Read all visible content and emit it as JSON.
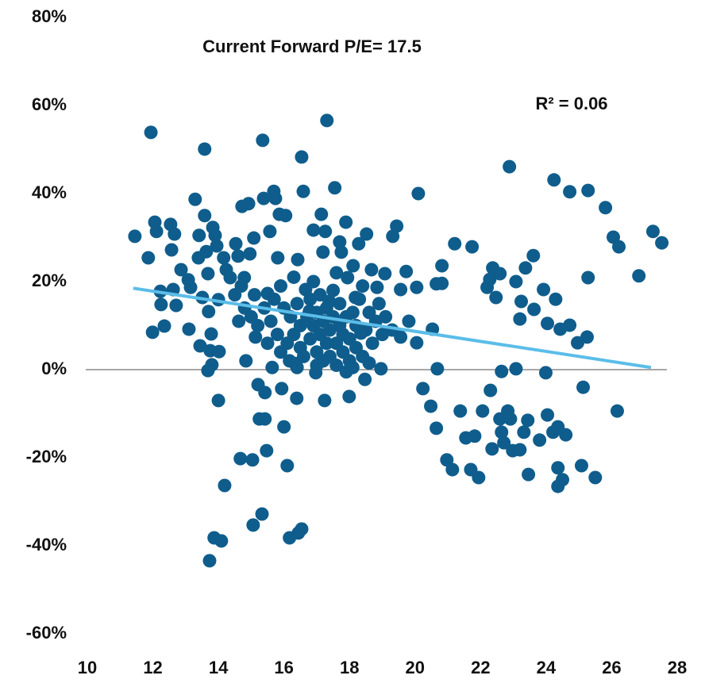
{
  "chart_data": {
    "type": "scatter",
    "annotations": [
      "Current Forward P/E= 17.5",
      "R² = 0.06"
    ],
    "color": "#0f5d8c",
    "x": [
      11.45,
      11.86,
      11.94,
      11.99,
      12.06,
      12.11,
      12.23,
      12.25,
      12.35,
      12.54,
      12.57,
      12.66,
      12.62,
      12.71,
      12.86,
      13.08,
      13.1,
      13.15,
      13.29,
      13.39,
      13.41,
      13.44,
      13.51,
      13.58,
      13.58,
      13.63,
      13.68,
      13.7,
      13.68,
      13.75,
      13.78,
      13.8,
      13.83,
      13.9,
      13.95,
      14.0,
      14.0,
      14.02,
      13.87,
      14.09,
      13.73,
      14.19,
      14.16,
      14.24,
      14.36,
      14.53,
      14.6,
      14.62,
      14.67,
      14.72,
      14.79,
      14.84,
      14.92,
      14.96,
      15.04,
      15.06,
      15.08,
      15.13,
      15.21,
      15.25,
      15.33,
      15.35,
      15.38,
      15.42,
      15.47,
      15.42,
      15.5,
      15.57,
      15.64,
      15.69,
      15.74,
      15.81,
      15.86,
      15.93,
      16.0,
      16.05,
      16.1,
      16.17,
      16.17,
      16.34,
      16.39,
      16.44,
      16.54,
      16.54,
      16.59,
      16.42,
      16.66,
      16.78,
      16.9,
      16.97,
      17.14,
      17.19,
      17.24,
      17.31,
      17.26,
      17.38,
      17.55,
      17.7,
      17.75,
      17.89,
      17.94,
      17.99,
      18.11,
      18.18,
      18.28,
      18.35,
      18.47,
      18.52,
      18.67,
      18.84,
      18.96,
      19.08,
      19.32,
      19.44,
      19.56,
      19.56,
      19.73,
      19.81,
      20.05,
      20.05,
      20.1,
      20.24,
      20.48,
      20.53,
      20.65,
      20.68,
      20.65,
      20.82,
      20.82,
      20.97,
      21.14,
      21.21,
      21.38,
      21.55,
      21.7,
      21.74,
      21.82,
      21.94,
      22.06,
      22.2,
      22.28,
      22.3,
      22.35,
      22.37,
      22.47,
      22.59,
      22.64,
      22.59,
      22.64,
      22.71,
      22.83,
      22.88,
      22.91,
      22.98,
      23.08,
      23.08,
      23.2,
      23.2,
      23.24,
      23.32,
      23.37,
      23.44,
      23.46,
      23.61,
      23.63,
      23.8,
      23.92,
      23.99,
      24.04,
      24.04,
      24.24,
      24.21,
      24.29,
      24.36,
      24.36,
      24.43,
      24.36,
      24.5,
      24.6,
      24.72,
      24.72,
      24.96,
      25.13,
      25.08,
      25.25,
      25.28,
      25.28,
      25.5,
      25.81,
      26.05,
      26.17,
      26.22,
      26.83,
      27.26,
      27.53,
      16.2,
      16.3,
      16.4,
      16.5,
      16.5,
      16.6,
      16.7,
      16.8,
      16.8,
      16.9,
      17.0,
      17.0,
      17.1,
      17.1,
      17.2,
      17.2,
      17.3,
      17.3,
      17.4,
      17.4,
      17.5,
      17.5,
      17.6,
      17.6,
      17.7,
      17.7,
      17.8,
      17.8,
      17.9,
      18.0,
      18.0,
      18.1,
      18.2,
      18.2,
      18.3,
      18.4,
      18.5,
      18.6,
      18.7,
      18.8,
      18.9,
      19.0,
      19.1,
      19.3,
      15.2,
      15.4,
      15.5,
      15.6,
      15.7,
      15.8,
      15.9,
      16.0,
      16.1,
      15.0,
      15.1,
      14.8,
      14.5,
      14.7,
      15.9,
      16.3,
      16.9,
      17.6,
      18.4,
      17.0,
      16.4,
      18.6,
      17.9,
      18.1
    ],
    "values": [
      30.3,
      25.4,
      53.9,
      8.5,
      33.5,
      31.4,
      17.8,
      14.8,
      9.9,
      33.0,
      27.2,
      30.8,
      18.2,
      14.6,
      22.7,
      20.4,
      9.2,
      18.7,
      38.7,
      25.4,
      30.5,
      5.4,
      16.4,
      50.1,
      35.0,
      26.8,
      21.8,
      13.2,
      -0.2,
      4.3,
      8.1,
      1.1,
      32.3,
      30.5,
      28.1,
      15.9,
      -7.0,
      4.1,
      -38.2,
      -38.9,
      -43.4,
      -26.3,
      25.4,
      22.7,
      20.9,
      28.6,
      25.8,
      11.0,
      -20.2,
      37.1,
      20.9,
      2.0,
      37.7,
      26.3,
      -20.5,
      -35.3,
      29.9,
      7.4,
      -3.4,
      -11.2,
      -32.8,
      52.1,
      38.9,
      -11.2,
      -18.4,
      -5.2,
      17.3,
      31.4,
      0.5,
      40.5,
      38.9,
      25.4,
      35.3,
      -4.3,
      -13.0,
      35.0,
      -21.8,
      -38.2,
      2.0,
      1.4,
      -6.5,
      -37.1,
      -36.2,
      48.3,
      40.5,
      25.0,
      18.2,
      13.3,
      31.7,
      -0.7,
      35.3,
      26.7,
      -7.0,
      56.6,
      31.4,
      15.5,
      41.3,
      29.0,
      26.7,
      33.5,
      20.9,
      -6.1,
      23.6,
      16.4,
      28.6,
      8.3,
      -2.2,
      30.8,
      22.7,
      18.7,
      0.2,
      21.8,
      30.3,
      32.6,
      7.4,
      18.2,
      22.3,
      11.0,
      18.7,
      6.1,
      40.0,
      -4.3,
      -8.3,
      9.2,
      -13.3,
      0.2,
      19.5,
      23.6,
      19.6,
      -20.5,
      -22.7,
      28.6,
      -9.4,
      -15.5,
      -22.7,
      27.9,
      -15.1,
      -24.5,
      -9.4,
      18.7,
      20.5,
      -4.7,
      -18.0,
      23.1,
      16.4,
      21.8,
      -0.4,
      -11.2,
      -14.2,
      -16.6,
      -9.4,
      46.1,
      -11.2,
      -18.4,
      20.0,
      0.2,
      -18.2,
      11.5,
      15.5,
      -14.2,
      23.1,
      -11.5,
      -23.8,
      25.9,
      13.7,
      -16.0,
      18.2,
      -0.7,
      10.5,
      -10.3,
      43.1,
      -14.2,
      16.0,
      -13.0,
      -22.3,
      9.2,
      -26.5,
      -25.0,
      -14.8,
      40.4,
      10.1,
      6.1,
      -4.0,
      -21.8,
      7.4,
      20.9,
      40.7,
      -24.5,
      36.8,
      30.1,
      -9.4,
      27.9,
      21.3,
      31.4,
      28.8,
      12,
      8,
      15,
      5,
      10,
      3,
      12,
      7,
      16,
      10,
      4,
      13,
      8,
      17,
      2,
      11,
      6,
      14,
      9,
      3,
      12,
      18,
      6,
      1,
      10,
      15,
      4,
      8,
      12,
      2,
      7,
      13,
      5,
      10,
      16,
      3,
      9,
      13,
      6,
      11,
      15,
      8,
      12,
      9,
      10,
      14,
      6,
      11,
      16,
      8,
      4,
      14,
      6,
      12,
      17,
      14,
      17,
      19,
      19,
      21,
      20,
      22,
      19,
      1,
      0.5,
      1.5,
      -0.5,
      0.5
    ],
    "trendline": {
      "x": [
        11.4,
        27.2
      ],
      "values": [
        18.5,
        0.5
      ],
      "color": "#5bbde8"
    },
    "xlim": [
      10,
      28
    ],
    "xticks": [
      10,
      12,
      14,
      16,
      18,
      20,
      22,
      24,
      26,
      28
    ],
    "ylim": [
      -60,
      80
    ],
    "yticks": [
      {
        "value": -60,
        "label": "-60%"
      },
      {
        "value": -40,
        "label": "-40%"
      },
      {
        "value": -20,
        "label": "-20%"
      },
      {
        "value": 0,
        "label": "0%"
      },
      {
        "value": 20,
        "label": "20%"
      },
      {
        "value": 40,
        "label": "40%"
      },
      {
        "value": 60,
        "label": "60%"
      },
      {
        "value": 80,
        "label": "80%"
      }
    ]
  }
}
